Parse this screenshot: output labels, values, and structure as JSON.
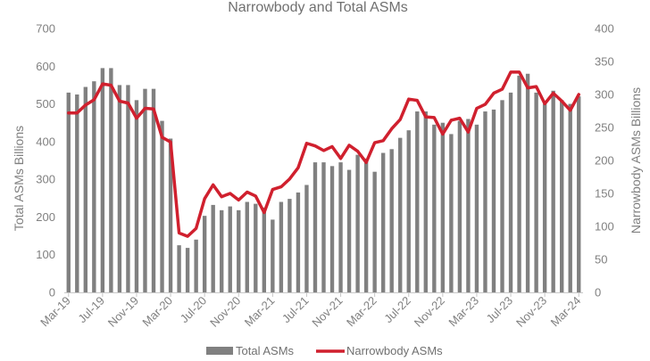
{
  "chart_data": {
    "type": "bar",
    "title": "Narrowbody and Total ASMs",
    "ylabel_left": "Total ASMs Billions",
    "ylabel_right": "Narrowbody ASMs Billions",
    "ylim_left": [
      0,
      700
    ],
    "ylim_right": [
      0,
      400
    ],
    "yticks_left": [
      "0",
      "100",
      "200",
      "300",
      "400",
      "500",
      "600",
      "700"
    ],
    "yticks_right": [
      "0",
      "50",
      "100",
      "150",
      "200",
      "250",
      "300",
      "350",
      "400"
    ],
    "x": [
      "Mar-19",
      "Apr-19",
      "May-19",
      "Jun-19",
      "Jul-19",
      "Aug-19",
      "Sep-19",
      "Oct-19",
      "Nov-19",
      "Dec-19",
      "Jan-20",
      "Feb-20",
      "Mar-20",
      "Apr-20",
      "May-20",
      "Jun-20",
      "Jul-20",
      "Aug-20",
      "Sep-20",
      "Oct-20",
      "Nov-20",
      "Dec-20",
      "Jan-21",
      "Feb-21",
      "Mar-21",
      "Apr-21",
      "May-21",
      "Jun-21",
      "Jul-21",
      "Aug-21",
      "Sep-21",
      "Oct-21",
      "Nov-21",
      "Dec-21",
      "Jan-22",
      "Feb-22",
      "Mar-22",
      "Apr-22",
      "May-22",
      "Jun-22",
      "Jul-22",
      "Aug-22",
      "Sep-22",
      "Oct-22",
      "Nov-22",
      "Dec-22",
      "Jan-23",
      "Feb-23",
      "Mar-23",
      "Apr-23",
      "May-23",
      "Jun-23",
      "Jul-23",
      "Aug-23",
      "Sep-23",
      "Oct-23",
      "Nov-23",
      "Dec-23",
      "Jan-24",
      "Feb-24",
      "Mar-24"
    ],
    "x_tick_labels": [
      "Mar-19",
      "Jul-19",
      "Nov-19",
      "Mar-20",
      "Jul-20",
      "Nov-20",
      "Mar-21",
      "Jul-21",
      "Nov-21",
      "Mar-22",
      "Jul-22",
      "Nov-22",
      "Mar-23",
      "Jul-23",
      "Nov-23",
      "Mar-24"
    ],
    "x_tick_every": 4,
    "series": [
      {
        "name": "Total ASMs",
        "type": "bar",
        "axis": "left",
        "color": "#808080",
        "values": [
          530,
          525,
          545,
          560,
          595,
          595,
          550,
          550,
          510,
          540,
          540,
          455,
          408,
          125,
          118,
          140,
          203,
          232,
          218,
          228,
          218,
          240,
          235,
          225,
          193,
          240,
          248,
          265,
          285,
          345,
          345,
          335,
          345,
          325,
          365,
          355,
          320,
          370,
          380,
          410,
          430,
          480,
          480,
          445,
          450,
          420,
          455,
          460,
          445,
          480,
          485,
          510,
          530,
          575,
          580,
          530,
          500,
          535,
          510,
          500,
          520
        ]
      },
      {
        "name": "Narrowbody ASMs",
        "type": "line",
        "axis": "right",
        "color": "#d0202e",
        "values": [
          272,
          272,
          284,
          292,
          316,
          314,
          290,
          287,
          264,
          279,
          278,
          235,
          228,
          90,
          85,
          97,
          142,
          163,
          145,
          150,
          140,
          152,
          146,
          121,
          156,
          160,
          172,
          189,
          226,
          222,
          215,
          221,
          203,
          223,
          214,
          197,
          227,
          230,
          248,
          262,
          293,
          291,
          266,
          265,
          240,
          261,
          264,
          243,
          279,
          285,
          302,
          308,
          334,
          334,
          310,
          312,
          286,
          302,
          290,
          276,
          300
        ]
      }
    ],
    "grid": false,
    "legend": "bottom"
  }
}
